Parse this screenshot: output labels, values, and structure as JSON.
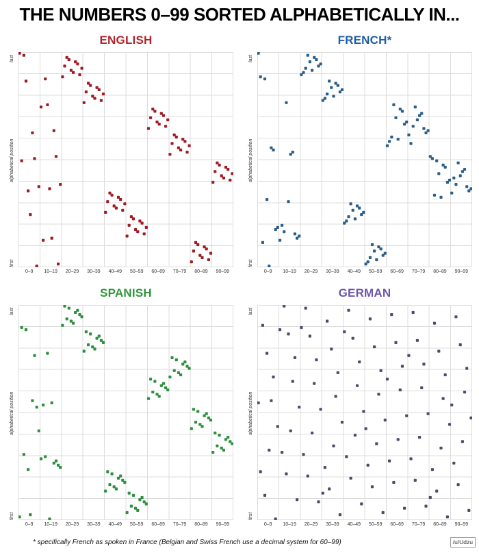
{
  "page_title": "THE NUMBERS 0–99 SORTED ALPHABETICALLY IN...",
  "footnote": "* specifically French as spoken in France (Belgian and Swiss French use a decimal system for 60–99)",
  "credit": "/u/Udzu",
  "axes": {
    "y_label": "alphabetical position",
    "y_top": "last",
    "y_bottom": "first",
    "x_ticks": [
      "0–9",
      "10–19",
      "20–29",
      "30–39",
      "40–49",
      "50–59",
      "60–69",
      "70–79",
      "80–89",
      "90–99"
    ]
  },
  "chart_data": [
    {
      "type": "scatter",
      "title": "ENGLISH",
      "title_color": "#b2242b",
      "point_color": "#9e1c24",
      "x_description": "number 0–99 grouped in decades",
      "y_description": "alphabetical position of the number name (1 = first, 100 = last)",
      "ylim": [
        1,
        100
      ],
      "positions_by_number": [
        100,
        50,
        99,
        87,
        36,
        25,
        63,
        51,
        1,
        38,
        75,
        13,
        88,
        76,
        37,
        14,
        64,
        52,
        2,
        39,
        89,
        94,
        98,
        97,
        92,
        91,
        96,
        95,
        90,
        93,
        77,
        82,
        86,
        85,
        80,
        79,
        84,
        83,
        78,
        81,
        26,
        31,
        35,
        34,
        29,
        28,
        33,
        32,
        27,
        30,
        15,
        20,
        24,
        23,
        18,
        17,
        22,
        21,
        16,
        19,
        65,
        70,
        74,
        73,
        68,
        67,
        72,
        71,
        66,
        69,
        53,
        58,
        62,
        61,
        56,
        55,
        60,
        59,
        54,
        57,
        3,
        8,
        12,
        11,
        6,
        5,
        10,
        9,
        4,
        7,
        40,
        45,
        49,
        48,
        43,
        42,
        47,
        46,
        41,
        44
      ]
    },
    {
      "type": "scatter",
      "title": "FRENCH*",
      "title_color": "#1f5da5",
      "point_color": "#2b5f8a",
      "x_description": "number 0–99 grouped in decades",
      "y_description": "alphabetical position of the number name (1 = first, 100 = last)",
      "ylim": [
        1,
        100
      ],
      "positions_by_number": [
        100,
        89,
        12,
        88,
        32,
        1,
        56,
        55,
        18,
        19,
        13,
        20,
        17,
        77,
        31,
        53,
        54,
        16,
        14,
        15,
        90,
        91,
        93,
        99,
        96,
        92,
        98,
        97,
        94,
        95,
        78,
        79,
        81,
        87,
        84,
        80,
        86,
        85,
        82,
        83,
        21,
        22,
        24,
        30,
        27,
        23,
        29,
        28,
        25,
        26,
        2,
        3,
        5,
        11,
        8,
        4,
        10,
        9,
        6,
        7,
        57,
        59,
        61,
        76,
        70,
        60,
        74,
        73,
        67,
        68,
        62,
        58,
        66,
        75,
        69,
        71,
        72,
        65,
        63,
        64,
        52,
        51,
        34,
        50,
        44,
        33,
        48,
        47,
        40,
        41,
        35,
        42,
        39,
        49,
        43,
        45,
        46,
        38,
        36,
        37
      ]
    },
    {
      "type": "scatter",
      "title": "SPANISH",
      "title_color": "#2e9639",
      "point_color": "#2f8f3f",
      "x_description": "number 0–99 grouped in decades",
      "y_description": "alphabetical position of the number name (1 = first, 100 = last)",
      "ylim": [
        1,
        100
      ],
      "positions_by_number": [
        2,
        90,
        31,
        89,
        24,
        3,
        56,
        77,
        53,
        42,
        29,
        54,
        30,
        78,
        1,
        55,
        27,
        28,
        26,
        25,
        91,
        100,
        94,
        99,
        93,
        92,
        97,
        98,
        96,
        95,
        79,
        88,
        82,
        87,
        81,
        80,
        85,
        86,
        84,
        83,
        14,
        23,
        17,
        22,
        16,
        15,
        20,
        21,
        19,
        18,
        4,
        13,
        7,
        12,
        6,
        5,
        10,
        11,
        9,
        8,
        57,
        66,
        60,
        65,
        59,
        58,
        63,
        64,
        62,
        61,
        67,
        76,
        70,
        75,
        69,
        68,
        73,
        74,
        72,
        71,
        43,
        52,
        46,
        51,
        45,
        44,
        49,
        50,
        48,
        47,
        32,
        41,
        35,
        40,
        34,
        33,
        38,
        39,
        37,
        36
      ]
    },
    {
      "type": "scatter",
      "title": "GERMAN",
      "title_color": "#6e56ab",
      "point_color": "#514a6b",
      "x_description": "number 0–99 grouped in decades",
      "y_description": "alphabetical position of the number name (1 = first, 100 = last)",
      "ylim": [
        1,
        100
      ],
      "positions_by_number": [
        55,
        23,
        91,
        12,
        78,
        33,
        56,
        67,
        1,
        44,
        89,
        32,
        100,
        22,
        87,
        42,
        65,
        76,
        10,
        53,
        90,
        31,
        99,
        21,
        86,
        41,
        64,
        75,
        9,
        52,
        13,
        25,
        93,
        15,
        80,
        35,
        58,
        69,
        3,
        46,
        88,
        30,
        98,
        20,
        85,
        40,
        63,
        74,
        8,
        51,
        43,
        26,
        94,
        16,
        81,
        36,
        59,
        70,
        4,
        47,
        66,
        28,
        96,
        18,
        83,
        38,
        61,
        72,
        6,
        49,
        77,
        29,
        97,
        19,
        84,
        39,
        62,
        73,
        7,
        50,
        11,
        24,
        92,
        14,
        79,
        34,
        57,
        68,
        2,
        45,
        54,
        27,
        95,
        17,
        82,
        37,
        60,
        71,
        5,
        48
      ]
    }
  ]
}
